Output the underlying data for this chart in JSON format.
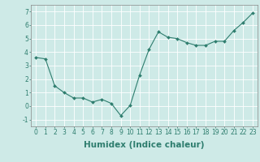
{
  "x": [
    0,
    1,
    2,
    3,
    4,
    5,
    6,
    7,
    8,
    9,
    10,
    11,
    12,
    13,
    14,
    15,
    16,
    17,
    18,
    19,
    20,
    21,
    22,
    23
  ],
  "y": [
    3.6,
    3.5,
    1.5,
    1.0,
    0.6,
    0.6,
    0.3,
    0.5,
    0.2,
    -0.7,
    0.05,
    2.3,
    4.2,
    5.5,
    5.1,
    5.0,
    4.7,
    4.5,
    4.5,
    4.8,
    4.8,
    5.6,
    6.2,
    6.9
  ],
  "xlabel": "Humidex (Indice chaleur)",
  "xlim": [
    -0.5,
    23.5
  ],
  "ylim": [
    -1.5,
    7.5
  ],
  "yticks": [
    -1,
    0,
    1,
    2,
    3,
    4,
    5,
    6,
    7
  ],
  "xticks": [
    0,
    1,
    2,
    3,
    4,
    5,
    6,
    7,
    8,
    9,
    10,
    11,
    12,
    13,
    14,
    15,
    16,
    17,
    18,
    19,
    20,
    21,
    22,
    23
  ],
  "line_color": "#2e7d6e",
  "marker": "D",
  "marker_size": 2.0,
  "bg_color": "#ceeae7",
  "grid_color": "#ffffff",
  "tick_fontsize": 5.5,
  "xlabel_fontsize": 7.5
}
